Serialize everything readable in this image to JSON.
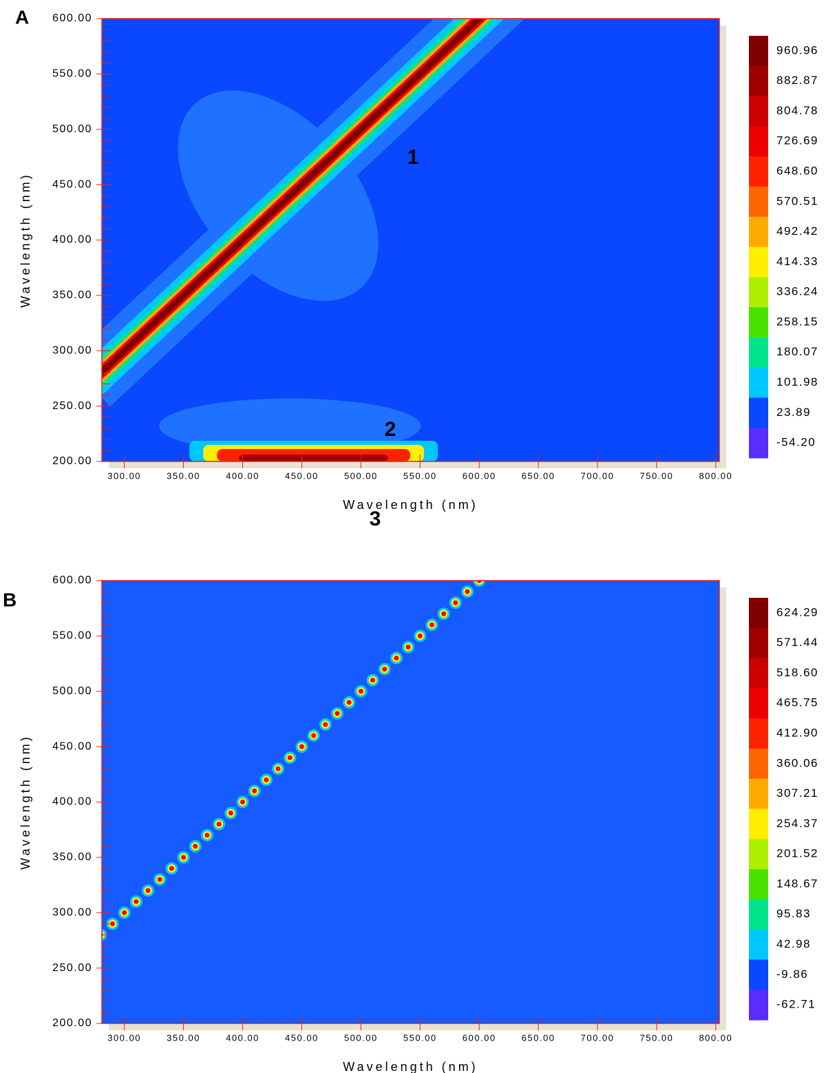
{
  "chart_data": [
    {
      "type": "contour",
      "panel": "A",
      "annotations": [
        "1",
        "2"
      ],
      "xlabel": "Wavelength (nm)",
      "ylabel": "Wavelength (nm)",
      "xlim": [
        281,
        803
      ],
      "ylim": [
        200,
        600
      ],
      "xticks": [
        {
          "value": 300,
          "label": "300.00"
        },
        {
          "value": 350,
          "label": "350.00"
        },
        {
          "value": 400,
          "label": "400.00"
        },
        {
          "value": 450,
          "label": "450.00"
        },
        {
          "value": 500,
          "label": "500.00"
        },
        {
          "value": 550,
          "label": "550.00"
        },
        {
          "value": 600,
          "label": "600.00"
        },
        {
          "value": 650,
          "label": "650.00"
        },
        {
          "value": 700,
          "label": "700.00"
        },
        {
          "value": 750,
          "label": "750.00"
        },
        {
          "value": 800,
          "label": "800.00"
        }
      ],
      "yticks": [
        {
          "value": 200,
          "label": "200.00"
        },
        {
          "value": 250,
          "label": "250.00"
        },
        {
          "value": 300,
          "label": "300.00"
        },
        {
          "value": 350,
          "label": "350.00"
        },
        {
          "value": 400,
          "label": "400.00"
        },
        {
          "value": 450,
          "label": "450.00"
        },
        {
          "value": 500,
          "label": "500.00"
        },
        {
          "value": 550,
          "label": "550.00"
        },
        {
          "value": 600,
          "label": "600.00"
        }
      ],
      "colorbar": {
        "ticks": [
          960.96,
          882.87,
          804.78,
          726.69,
          {
            "value": 648.6,
            "label": "648.60"
          },
          570.51,
          492.42,
          414.33,
          336.24,
          258.15,
          180.07,
          101.98,
          23.89,
          {
            "value": -54.2,
            "label": "-54.20"
          }
        ],
        "colors": [
          "#800000",
          "#a00000",
          "#cc0000",
          "#ee0000",
          "#ff2200",
          "#ff6600",
          "#ffaa00",
          "#ffee00",
          "#aef000",
          "#48e400",
          "#00e48c",
          "#00c8ff",
          "#0a48ff",
          "#5a2cff"
        ]
      }
    },
    {
      "type": "contour",
      "panel": "B",
      "annotations": [
        "3"
      ],
      "xlabel": "Wavelength (nm)",
      "ylabel": "Wavelength (nm)",
      "xlim": [
        281,
        803
      ],
      "ylim": [
        200,
        600
      ],
      "xticks": [
        {
          "value": 300,
          "label": "300.00"
        },
        {
          "value": 350,
          "label": "350.00"
        },
        {
          "value": 400,
          "label": "400.00"
        },
        {
          "value": 450,
          "label": "450.00"
        },
        {
          "value": 500,
          "label": "500.00"
        },
        {
          "value": 550,
          "label": "550.00"
        },
        {
          "value": 600,
          "label": "600.00"
        },
        {
          "value": 650,
          "label": "650.00"
        },
        {
          "value": 700,
          "label": "700.00"
        },
        {
          "value": 750,
          "label": "750.00"
        },
        {
          "value": 800,
          "label": "800.00"
        }
      ],
      "yticks": [
        {
          "value": 200,
          "label": "200.00"
        },
        {
          "value": 250,
          "label": "250.00"
        },
        {
          "value": 300,
          "label": "300.00"
        },
        {
          "value": 350,
          "label": "350.00"
        },
        {
          "value": 400,
          "label": "400.00"
        },
        {
          "value": 450,
          "label": "450.00"
        },
        {
          "value": 500,
          "label": "500.00"
        },
        {
          "value": 550,
          "label": "550.00"
        },
        {
          "value": 600,
          "label": "600.00"
        }
      ],
      "colorbar": {
        "ticks": [
          624.29,
          571.44,
          {
            "value": 518.6,
            "label": "518.60"
          },
          465.75,
          {
            "value": 412.9,
            "label": "412.90"
          },
          360.06,
          307.21,
          254.37,
          201.52,
          148.67,
          95.83,
          42.98,
          -9.86,
          -62.71
        ],
        "colors": [
          "#800000",
          "#a00000",
          "#cc0000",
          "#ee0000",
          "#ff2200",
          "#ff6600",
          "#ffaa00",
          "#ffee00",
          "#aef000",
          "#48e400",
          "#00e48c",
          "#00c8ff",
          "#0a48ff",
          "#5a2cff"
        ]
      }
    }
  ]
}
